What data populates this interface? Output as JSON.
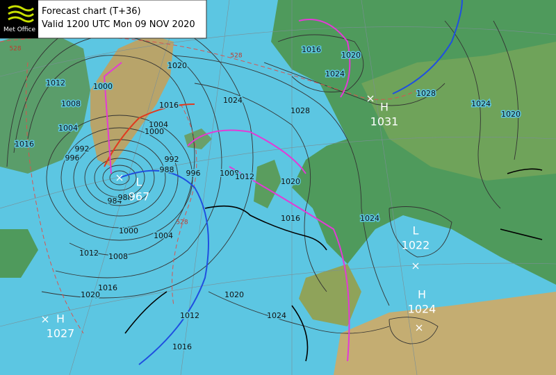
{
  "header": {
    "logo_text": "Met Office",
    "title": "Forecast chart (T+36)",
    "valid": "Valid 1200 UTC Mon 09 NOV 2020"
  },
  "pressure_centres": [
    {
      "kind": "L",
      "value": 967
    },
    {
      "kind": "H",
      "value": 1031
    },
    {
      "kind": "L",
      "value": 1022
    },
    {
      "kind": "H",
      "value": 1024
    },
    {
      "kind": "H",
      "value": 1027
    }
  ],
  "isobar_labels": [
    1016,
    1020,
    1024,
    1028,
    1024,
    1020,
    1028,
    1024,
    1020,
    1016,
    1004,
    1000,
    1000,
    1008,
    1012,
    1004,
    1016,
    996,
    992,
    988,
    992,
    996,
    1008,
    1012,
    1020,
    1016,
    1024,
    984,
    988,
    1000,
    1004,
    1008,
    1012,
    1016,
    1020,
    1020,
    1012,
    1016,
    1024
  ],
  "thickness_labels": [
    528,
    528,
    528
  ]
}
